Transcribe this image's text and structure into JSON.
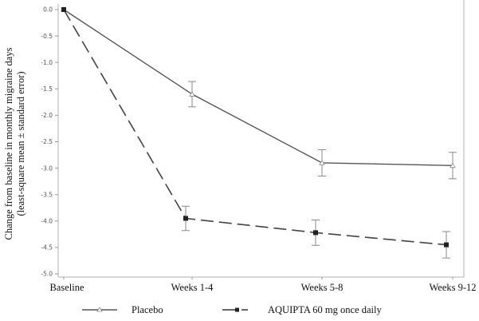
{
  "chart_data": {
    "type": "line",
    "title": "",
    "xlabel": "",
    "ylabel": [
      "Change from baseline in monthly migraine days",
      "(least-square mean ± standard error)"
    ],
    "categories": [
      "Baseline",
      "Weeks 1-4",
      "Weeks 5-8",
      "Weeks 9-12"
    ],
    "ylim": [
      -5.0,
      0.0
    ],
    "yticks": [
      0.0,
      -0.5,
      -1.0,
      -1.5,
      -2.0,
      -2.5,
      -3.0,
      -3.5,
      -4.0,
      -4.5,
      -5.0
    ],
    "ytick_labels": [
      "0.0",
      "-0.5",
      "-1.0",
      "-1.5",
      "-2.0",
      "-2.5",
      "-3.0",
      "-3.5",
      "-4.0",
      "-4.5",
      "-5.0"
    ],
    "grid": false,
    "legend_position": "bottom",
    "series": [
      {
        "name": "Placebo",
        "style": "solid",
        "marker": "open-triangle",
        "color": "#555555",
        "values": [
          0.0,
          -1.6,
          -2.9,
          -2.95
        ],
        "errors": [
          0.0,
          0.24,
          0.25,
          0.25
        ]
      },
      {
        "name": "AQUIPTA 60 mg once daily",
        "style": "dashed",
        "marker": "filled-square",
        "color": "#444444",
        "values": [
          0.0,
          -3.95,
          -4.22,
          -4.45
        ],
        "errors": [
          0.0,
          0.23,
          0.24,
          0.25
        ]
      }
    ]
  }
}
